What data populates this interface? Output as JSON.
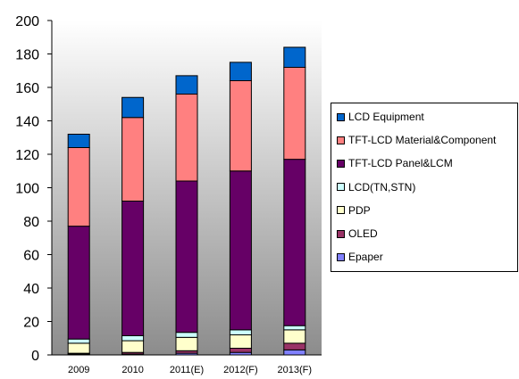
{
  "chart_data": {
    "type": "bar",
    "stacked": true,
    "categories": [
      "2009",
      "2010",
      "2011(E)",
      "2012(F)",
      "2013(F)"
    ],
    "ylim": [
      0,
      200
    ],
    "yticks": [
      "0",
      "20",
      "40",
      "60",
      "80",
      "100",
      "120",
      "140",
      "160",
      "180",
      "200"
    ],
    "grid": false,
    "legend_position": "right",
    "series": [
      {
        "name": "Epaper",
        "color": "#8080ff",
        "values": [
          0.5,
          0.5,
          1,
          1.5,
          3
        ]
      },
      {
        "name": "OLED",
        "color": "#993366",
        "values": [
          0.5,
          1,
          1.5,
          2.5,
          4
        ]
      },
      {
        "name": "PDP",
        "color": "#ffffcc",
        "values": [
          6,
          7,
          8,
          8,
          8
        ]
      },
      {
        "name": "LCD(TN,STN)",
        "color": "#ccffff",
        "values": [
          2.5,
          3,
          3,
          3,
          2.5
        ]
      },
      {
        "name": "TFT-LCD Panel&LCM",
        "color": "#660066",
        "values": [
          67.5,
          80.5,
          90.5,
          95,
          99.5
        ]
      },
      {
        "name": "TFT-LCD Material&Component",
        "color": "#ff8080",
        "values": [
          47,
          50,
          52,
          54,
          55
        ]
      },
      {
        "name": "LCD Equipment",
        "color": "#0066cc",
        "values": [
          8,
          12,
          11,
          11,
          12
        ]
      }
    ]
  }
}
